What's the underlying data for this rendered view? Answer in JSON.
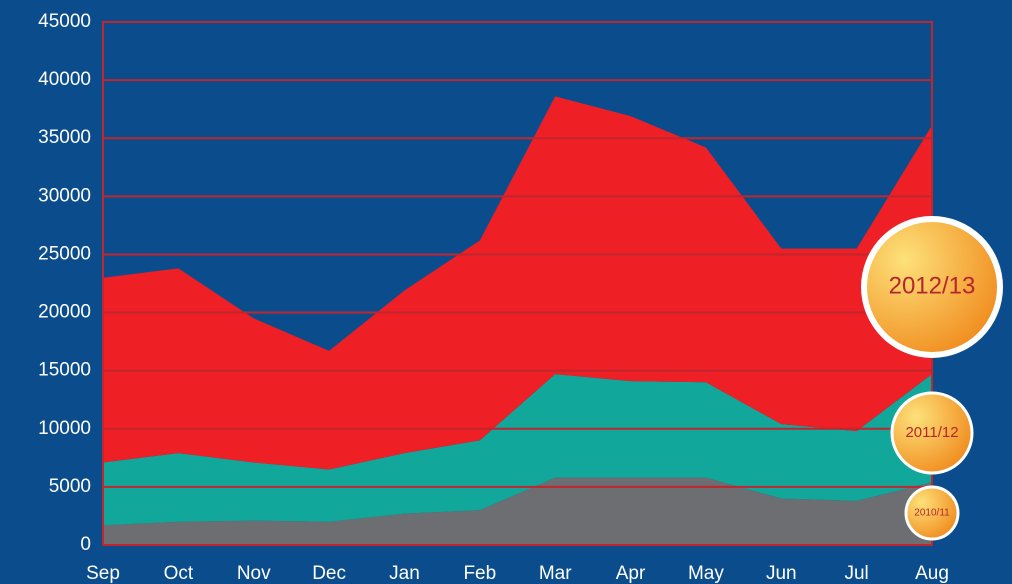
{
  "chart_data": {
    "type": "stacked_area",
    "categories": [
      "Sep",
      "Oct",
      "Nov",
      "Dec",
      "Jan",
      "Feb",
      "Mar",
      "Apr",
      "May",
      "Jun",
      "Jul",
      "Aug"
    ],
    "series": [
      {
        "name": "2010/11",
        "color": "#6d6e72",
        "values": [
          1700,
          2000,
          2100,
          2000,
          2700,
          3000,
          5800,
          5800,
          5800,
          4000,
          3800,
          5400
        ]
      },
      {
        "name": "2011/12",
        "color": "#11a89b",
        "values": [
          5400,
          5900,
          5000,
          4500,
          5200,
          6000,
          8900,
          8300,
          8200,
          6400,
          6000,
          9300
        ]
      },
      {
        "name": "2012/13",
        "color": "#ee1f25",
        "values": [
          15900,
          15900,
          12400,
          10200,
          14000,
          17200,
          23900,
          22800,
          20200,
          15100,
          15700,
          21400
        ]
      }
    ],
    "ylim": [
      0,
      45000
    ],
    "yticks": [
      0,
      5000,
      10000,
      15000,
      20000,
      25000,
      30000,
      35000,
      40000,
      45000
    ],
    "grid": true,
    "grid_color": "#c0262d",
    "legend": "right"
  }
}
